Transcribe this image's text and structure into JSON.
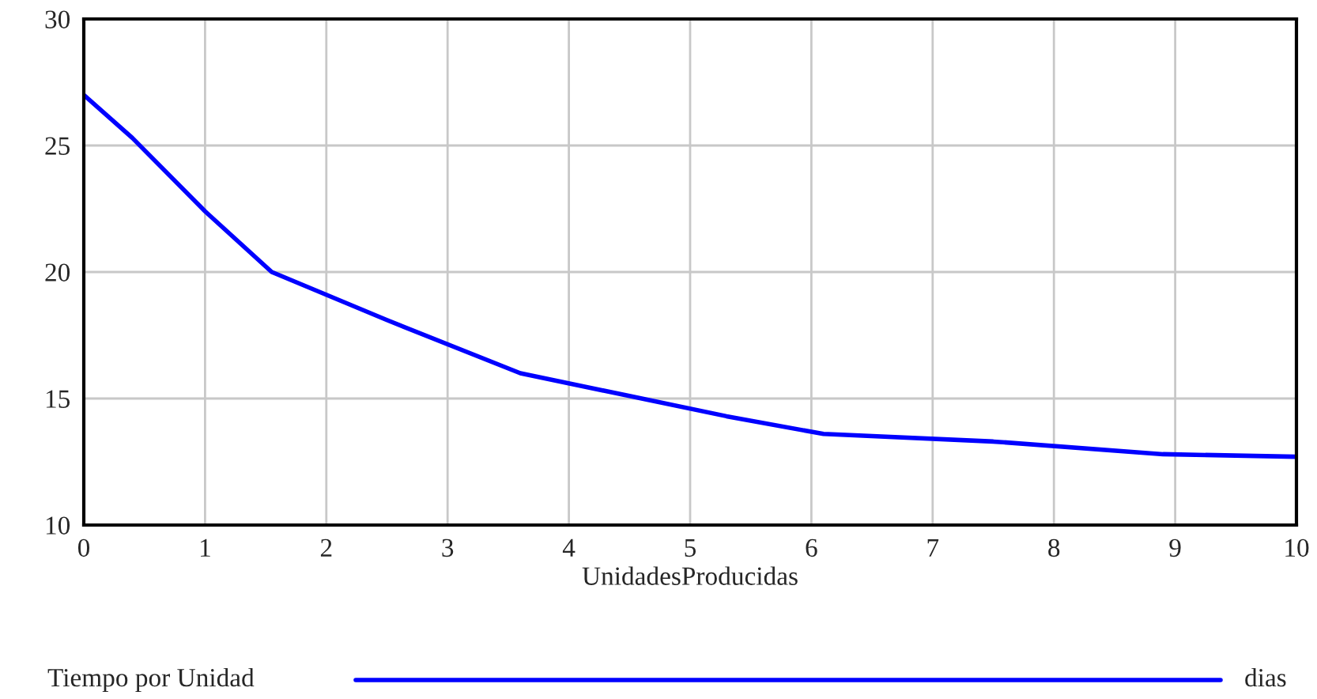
{
  "chart_data": {
    "type": "line",
    "xlabel": "UnidadesProducidas",
    "x": [
      0,
      0.4,
      1.0,
      1.55,
      2.5,
      3.6,
      4.5,
      5.3,
      6.1,
      7.5,
      8.9,
      10
    ],
    "series": [
      {
        "name": "Tiempo por Unidad",
        "color": "#0000ff",
        "values": [
          27.0,
          25.3,
          22.4,
          20.0,
          18.1,
          16.0,
          15.1,
          14.3,
          13.6,
          13.3,
          12.8,
          12.7
        ]
      }
    ],
    "xlim": [
      0,
      10
    ],
    "xticks": [
      0,
      1,
      2,
      3,
      4,
      5,
      6,
      7,
      8,
      9,
      10
    ],
    "ylim": [
      10,
      30
    ],
    "yticks": [
      10,
      15,
      20,
      25,
      30
    ],
    "grid": true,
    "legend": "bottom",
    "marker": "none",
    "line_style": "solid",
    "annotations": [
      "dias"
    ]
  }
}
